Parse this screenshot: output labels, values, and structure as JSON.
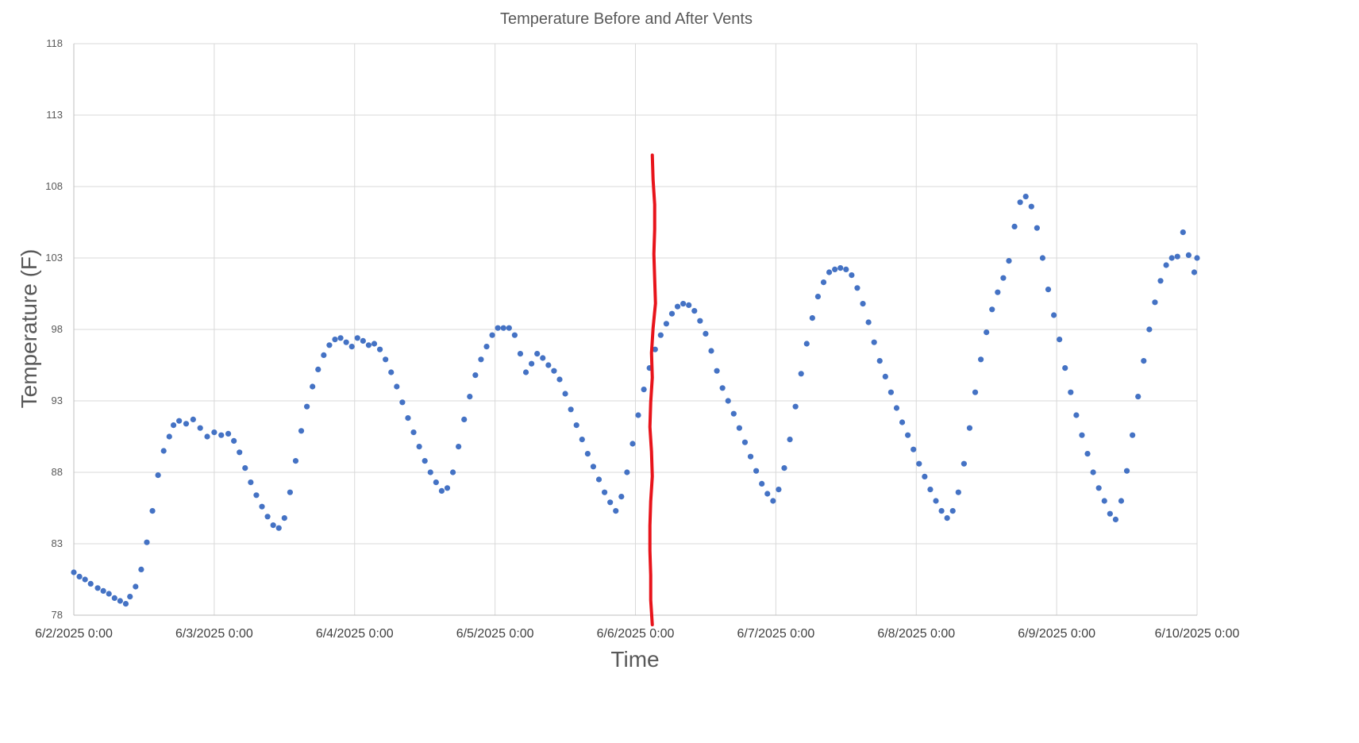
{
  "chart_data": {
    "type": "scatter",
    "title": "Temperature Before and After Vents",
    "xlabel": "Time",
    "ylabel": "Temperature (F)",
    "x_unit": "days since 6/2/2025 0:00",
    "xlim": [
      0,
      8
    ],
    "ylim": [
      78,
      118
    ],
    "x_ticks": [
      "6/2/2025 0:00",
      "6/3/2025 0:00",
      "6/4/2025 0:00",
      "6/5/2025 0:00",
      "6/6/2025 0:00",
      "6/7/2025 0:00",
      "6/8/2025 0:00",
      "6/9/2025 0:00",
      "6/10/2025 0:00"
    ],
    "y_ticks": [
      78,
      83,
      88,
      93,
      98,
      103,
      108,
      113,
      118
    ],
    "grid": true,
    "legend": "none",
    "marker_color": "#4472C4",
    "annotation": {
      "type": "hand-drawn vertical line",
      "color": "#E8141B",
      "x": 4.12,
      "y_range": [
        78,
        110.2
      ]
    },
    "series": [
      {
        "points": [
          [
            0.0,
            81.0
          ],
          [
            0.04,
            80.7
          ],
          [
            0.08,
            80.5
          ],
          [
            0.12,
            80.2
          ],
          [
            0.17,
            79.9
          ],
          [
            0.21,
            79.7
          ],
          [
            0.25,
            79.5
          ],
          [
            0.29,
            79.2
          ],
          [
            0.33,
            79.0
          ],
          [
            0.37,
            78.8
          ],
          [
            0.4,
            79.3
          ],
          [
            0.44,
            80.0
          ],
          [
            0.48,
            81.2
          ],
          [
            0.52,
            83.1
          ],
          [
            0.56,
            85.3
          ],
          [
            0.6,
            87.8
          ],
          [
            0.64,
            89.5
          ],
          [
            0.68,
            90.5
          ],
          [
            0.71,
            91.3
          ],
          [
            0.75,
            91.6
          ],
          [
            0.8,
            91.4
          ],
          [
            0.85,
            91.7
          ],
          [
            0.9,
            91.1
          ],
          [
            0.95,
            90.5
          ],
          [
            1.0,
            90.8
          ],
          [
            1.05,
            90.6
          ],
          [
            1.1,
            90.7
          ],
          [
            1.14,
            90.2
          ],
          [
            1.18,
            89.4
          ],
          [
            1.22,
            88.3
          ],
          [
            1.26,
            87.3
          ],
          [
            1.3,
            86.4
          ],
          [
            1.34,
            85.6
          ],
          [
            1.38,
            84.9
          ],
          [
            1.42,
            84.3
          ],
          [
            1.46,
            84.1
          ],
          [
            1.5,
            84.8
          ],
          [
            1.54,
            86.6
          ],
          [
            1.58,
            88.8
          ],
          [
            1.62,
            90.9
          ],
          [
            1.66,
            92.6
          ],
          [
            1.7,
            94.0
          ],
          [
            1.74,
            95.2
          ],
          [
            1.78,
            96.2
          ],
          [
            1.82,
            96.9
          ],
          [
            1.86,
            97.3
          ],
          [
            1.9,
            97.4
          ],
          [
            1.94,
            97.1
          ],
          [
            1.98,
            96.8
          ],
          [
            2.02,
            97.4
          ],
          [
            2.06,
            97.2
          ],
          [
            2.1,
            96.9
          ],
          [
            2.14,
            97.0
          ],
          [
            2.18,
            96.6
          ],
          [
            2.22,
            95.9
          ],
          [
            2.26,
            95.0
          ],
          [
            2.3,
            94.0
          ],
          [
            2.34,
            92.9
          ],
          [
            2.38,
            91.8
          ],
          [
            2.42,
            90.8
          ],
          [
            2.46,
            89.8
          ],
          [
            2.5,
            88.8
          ],
          [
            2.54,
            88.0
          ],
          [
            2.58,
            87.3
          ],
          [
            2.62,
            86.7
          ],
          [
            2.66,
            86.9
          ],
          [
            2.7,
            88.0
          ],
          [
            2.74,
            89.8
          ],
          [
            2.78,
            91.7
          ],
          [
            2.82,
            93.3
          ],
          [
            2.86,
            94.8
          ],
          [
            2.9,
            95.9
          ],
          [
            2.94,
            96.8
          ],
          [
            2.98,
            97.6
          ],
          [
            3.02,
            98.1
          ],
          [
            3.06,
            98.1
          ],
          [
            3.1,
            98.1
          ],
          [
            3.14,
            97.6
          ],
          [
            3.18,
            96.3
          ],
          [
            3.22,
            95.0
          ],
          [
            3.26,
            95.6
          ],
          [
            3.3,
            96.3
          ],
          [
            3.34,
            96.0
          ],
          [
            3.38,
            95.5
          ],
          [
            3.42,
            95.1
          ],
          [
            3.46,
            94.5
          ],
          [
            3.5,
            93.5
          ],
          [
            3.54,
            92.4
          ],
          [
            3.58,
            91.3
          ],
          [
            3.62,
            90.3
          ],
          [
            3.66,
            89.3
          ],
          [
            3.7,
            88.4
          ],
          [
            3.74,
            87.5
          ],
          [
            3.78,
            86.6
          ],
          [
            3.82,
            85.9
          ],
          [
            3.86,
            85.3
          ],
          [
            3.9,
            86.3
          ],
          [
            3.94,
            88.0
          ],
          [
            3.98,
            90.0
          ],
          [
            4.02,
            92.0
          ],
          [
            4.06,
            93.8
          ],
          [
            4.1,
            95.3
          ],
          [
            4.14,
            96.6
          ],
          [
            4.18,
            97.6
          ],
          [
            4.22,
            98.4
          ],
          [
            4.26,
            99.1
          ],
          [
            4.3,
            99.6
          ],
          [
            4.34,
            99.8
          ],
          [
            4.38,
            99.7
          ],
          [
            4.42,
            99.3
          ],
          [
            4.46,
            98.6
          ],
          [
            4.5,
            97.7
          ],
          [
            4.54,
            96.5
          ],
          [
            4.58,
            95.1
          ],
          [
            4.62,
            93.9
          ],
          [
            4.66,
            93.0
          ],
          [
            4.7,
            92.1
          ],
          [
            4.74,
            91.1
          ],
          [
            4.78,
            90.1
          ],
          [
            4.82,
            89.1
          ],
          [
            4.86,
            88.1
          ],
          [
            4.9,
            87.2
          ],
          [
            4.94,
            86.5
          ],
          [
            4.98,
            86.0
          ],
          [
            5.02,
            86.8
          ],
          [
            5.06,
            88.3
          ],
          [
            5.1,
            90.3
          ],
          [
            5.14,
            92.6
          ],
          [
            5.18,
            94.9
          ],
          [
            5.22,
            97.0
          ],
          [
            5.26,
            98.8
          ],
          [
            5.3,
            100.3
          ],
          [
            5.34,
            101.3
          ],
          [
            5.38,
            102.0
          ],
          [
            5.42,
            102.2
          ],
          [
            5.46,
            102.3
          ],
          [
            5.5,
            102.2
          ],
          [
            5.54,
            101.8
          ],
          [
            5.58,
            100.9
          ],
          [
            5.62,
            99.8
          ],
          [
            5.66,
            98.5
          ],
          [
            5.7,
            97.1
          ],
          [
            5.74,
            95.8
          ],
          [
            5.78,
            94.7
          ],
          [
            5.82,
            93.6
          ],
          [
            5.86,
            92.5
          ],
          [
            5.9,
            91.5
          ],
          [
            5.94,
            90.6
          ],
          [
            5.98,
            89.6
          ],
          [
            6.02,
            88.6
          ],
          [
            6.06,
            87.7
          ],
          [
            6.1,
            86.8
          ],
          [
            6.14,
            86.0
          ],
          [
            6.18,
            85.3
          ],
          [
            6.22,
            84.8
          ],
          [
            6.26,
            85.3
          ],
          [
            6.3,
            86.6
          ],
          [
            6.34,
            88.6
          ],
          [
            6.38,
            91.1
          ],
          [
            6.42,
            93.6
          ],
          [
            6.46,
            95.9
          ],
          [
            6.5,
            97.8
          ],
          [
            6.54,
            99.4
          ],
          [
            6.58,
            100.6
          ],
          [
            6.62,
            101.6
          ],
          [
            6.66,
            102.8
          ],
          [
            6.7,
            105.2
          ],
          [
            6.74,
            106.9
          ],
          [
            6.78,
            107.3
          ],
          [
            6.82,
            106.6
          ],
          [
            6.86,
            105.1
          ],
          [
            6.9,
            103.0
          ],
          [
            6.94,
            100.8
          ],
          [
            6.98,
            99.0
          ],
          [
            7.02,
            97.3
          ],
          [
            7.06,
            95.3
          ],
          [
            7.1,
            93.6
          ],
          [
            7.14,
            92.0
          ],
          [
            7.18,
            90.6
          ],
          [
            7.22,
            89.3
          ],
          [
            7.26,
            88.0
          ],
          [
            7.3,
            86.9
          ],
          [
            7.34,
            86.0
          ],
          [
            7.38,
            85.1
          ],
          [
            7.42,
            84.7
          ],
          [
            7.46,
            86.0
          ],
          [
            7.5,
            88.1
          ],
          [
            7.54,
            90.6
          ],
          [
            7.58,
            93.3
          ],
          [
            7.62,
            95.8
          ],
          [
            7.66,
            98.0
          ],
          [
            7.7,
            99.9
          ],
          [
            7.74,
            101.4
          ],
          [
            7.78,
            102.5
          ],
          [
            7.82,
            103.0
          ],
          [
            7.86,
            103.1
          ],
          [
            7.9,
            104.8
          ],
          [
            7.94,
            103.2
          ],
          [
            7.98,
            102.0
          ],
          [
            8.0,
            103.0
          ]
        ]
      }
    ]
  }
}
